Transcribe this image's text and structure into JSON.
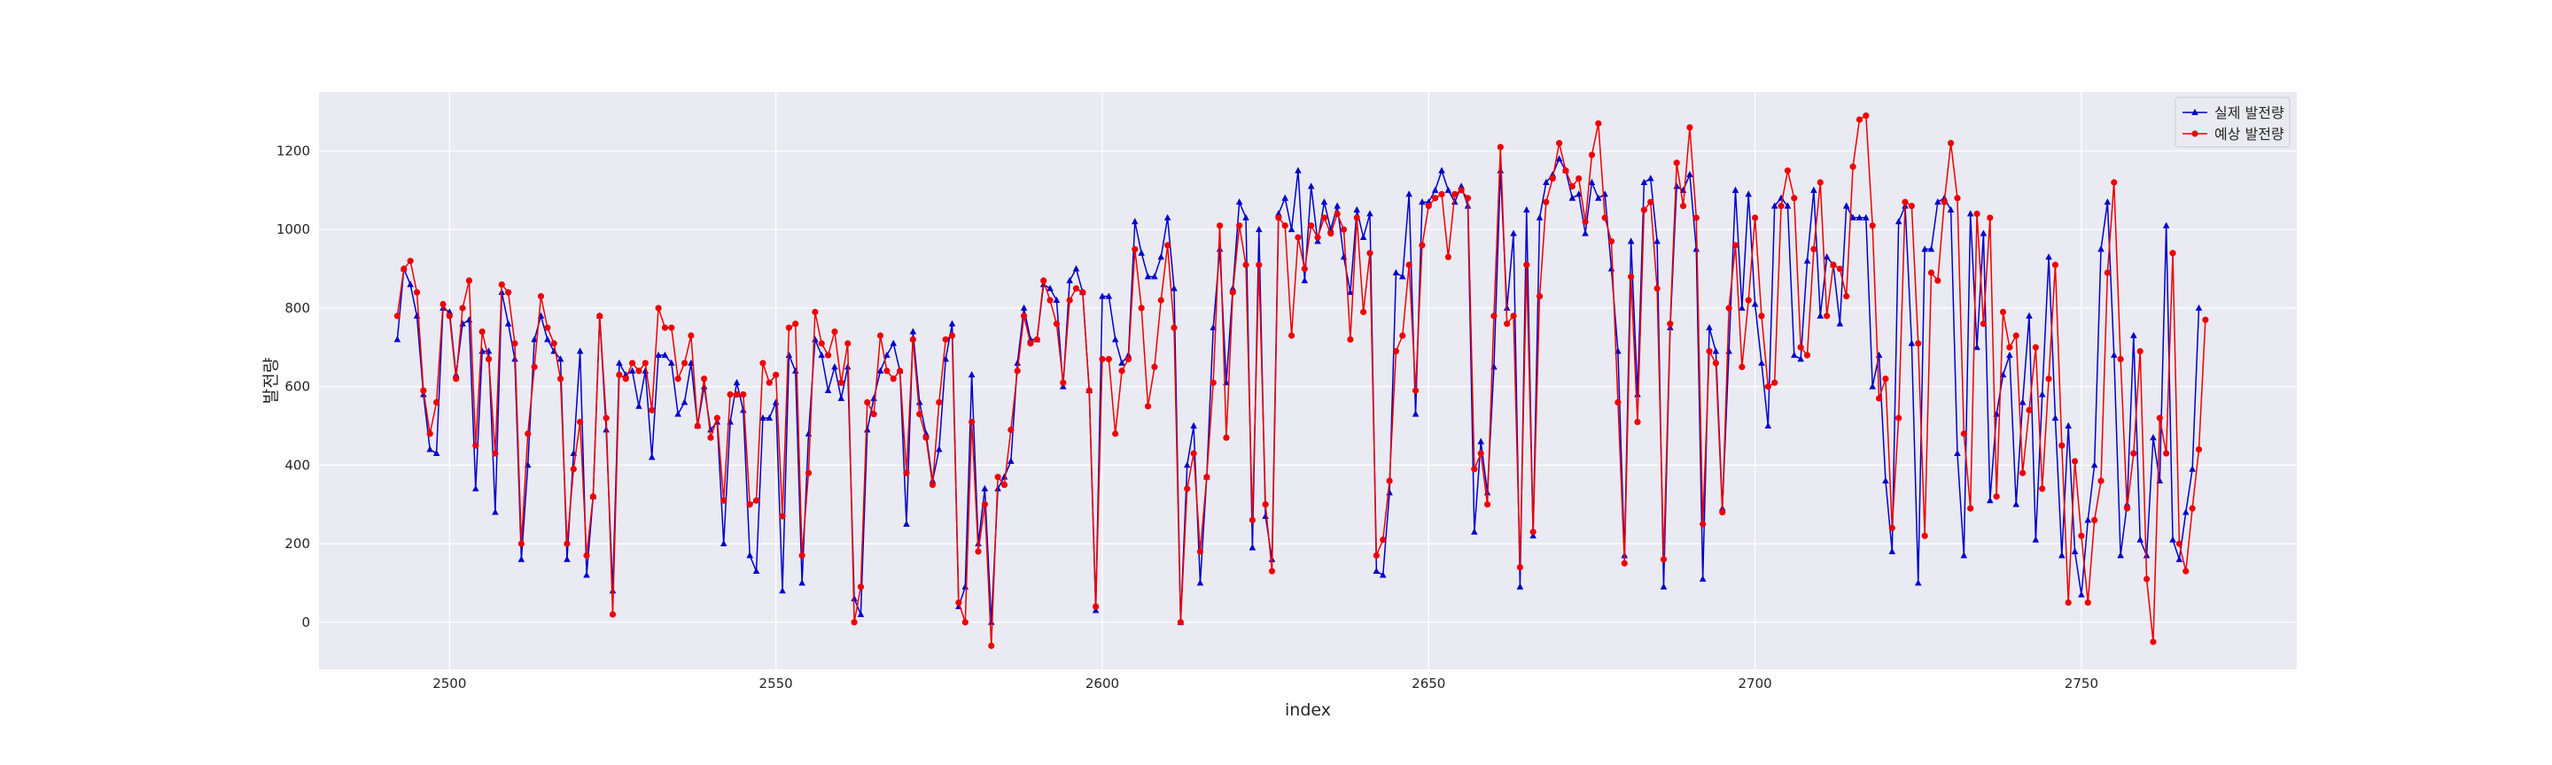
{
  "chart_data": {
    "type": "line",
    "xlabel": "index",
    "ylabel": "발전량",
    "xlim": [
      2480,
      2783
    ],
    "ylim": [
      -120,
      1350
    ],
    "xticks": [
      2500,
      2550,
      2600,
      2650,
      2700,
      2750
    ],
    "yticks": [
      0,
      200,
      400,
      600,
      800,
      1000,
      1200
    ],
    "grid": true,
    "legend_position": "top-right",
    "x_start": 2492,
    "series": [
      {
        "name": "실제 발전량",
        "color": "#0000cc",
        "marker": "triangle",
        "values": [
          720,
          900,
          860,
          780,
          580,
          440,
          430,
          800,
          790,
          630,
          760,
          770,
          340,
          690,
          690,
          280,
          840,
          760,
          670,
          160,
          400,
          720,
          780,
          720,
          690,
          670,
          160,
          430,
          690,
          120,
          320,
          780,
          490,
          80,
          660,
          630,
          640,
          550,
          640,
          420,
          680,
          680,
          660,
          530,
          560,
          660,
          500,
          600,
          490,
          510,
          200,
          510,
          610,
          540,
          170,
          130,
          520,
          520,
          560,
          80,
          680,
          640,
          100,
          480,
          720,
          680,
          590,
          650,
          570,
          650,
          60,
          20,
          490,
          570,
          640,
          680,
          710,
          640,
          250,
          740,
          560,
          480,
          360,
          440,
          670,
          760,
          40,
          90,
          630,
          200,
          340,
          0,
          340,
          370,
          410,
          660,
          800,
          720,
          720,
          860,
          850,
          820,
          600,
          870,
          900,
          840,
          590,
          30,
          830,
          830,
          720,
          660,
          680,
          1020,
          940,
          880,
          880,
          930,
          1030,
          850,
          0,
          400,
          500,
          100,
          370,
          750,
          950,
          610,
          850,
          1070,
          1030,
          190,
          1000,
          270,
          160,
          1040,
          1080,
          1000,
          1150,
          870,
          1110,
          970,
          1070,
          1000,
          1060,
          930,
          840,
          1050,
          980,
          1040,
          130,
          120,
          330,
          890,
          880,
          1090,
          530,
          1070,
          1070,
          1100,
          1150,
          1100,
          1070,
          1110,
          1060,
          230,
          460,
          330,
          650,
          1150,
          800,
          990,
          90,
          1050,
          220,
          1030,
          1120,
          1140,
          1180,
          1150,
          1080,
          1090,
          990,
          1120,
          1080,
          1090,
          900,
          690,
          170,
          970,
          580,
          1120,
          1130,
          970,
          90,
          750,
          1110,
          1100,
          1140,
          950,
          110,
          750,
          690,
          290,
          690,
          1100,
          800,
          1090,
          810,
          660,
          500,
          1060,
          1080,
          1060,
          680,
          670,
          920,
          1100,
          780,
          930,
          910,
          760,
          1060,
          1030,
          1030,
          1030,
          600,
          680,
          360,
          180,
          1020,
          1060,
          710,
          100,
          950,
          950,
          1070,
          1080,
          1050,
          430,
          170,
          1040,
          700,
          990,
          310,
          530,
          630,
          680,
          300,
          560,
          780,
          210,
          580,
          930,
          520,
          170,
          500,
          180,
          70,
          260,
          400,
          950,
          1070,
          680,
          170,
          300,
          730,
          210,
          170,
          470,
          360,
          1010,
          210,
          160,
          280,
          390,
          800
        ]
      },
      {
        "name": "예상 발전량",
        "color": "#ee0000",
        "marker": "circle",
        "values": [
          780,
          900,
          920,
          840,
          590,
          480,
          560,
          810,
          780,
          620,
          800,
          870,
          450,
          740,
          670,
          430,
          860,
          840,
          710,
          200,
          480,
          650,
          830,
          750,
          710,
          620,
          200,
          390,
          510,
          170,
          320,
          780,
          520,
          20,
          630,
          620,
          660,
          640,
          660,
          540,
          800,
          750,
          750,
          620,
          660,
          730,
          500,
          620,
          470,
          520,
          310,
          580,
          580,
          580,
          300,
          310,
          660,
          610,
          630,
          270,
          750,
          760,
          170,
          380,
          790,
          710,
          680,
          740,
          610,
          710,
          0,
          90,
          560,
          530,
          730,
          640,
          620,
          640,
          380,
          720,
          530,
          470,
          350,
          560,
          720,
          730,
          50,
          0,
          510,
          180,
          300,
          -60,
          370,
          350,
          490,
          640,
          780,
          710,
          720,
          870,
          820,
          760,
          610,
          820,
          850,
          840,
          590,
          40,
          670,
          670,
          480,
          640,
          670,
          950,
          800,
          550,
          650,
          820,
          960,
          750,
          0,
          340,
          430,
          180,
          370,
          610,
          1010,
          470,
          840,
          1010,
          910,
          260,
          910,
          300,
          130,
          1030,
          1010,
          730,
          980,
          900,
          1010,
          980,
          1030,
          990,
          1040,
          1000,
          720,
          1030,
          790,
          940,
          170,
          210,
          360,
          690,
          730,
          910,
          590,
          960,
          1060,
          1080,
          1090,
          930,
          1090,
          1100,
          1080,
          390,
          430,
          300,
          780,
          1210,
          760,
          780,
          140,
          910,
          230,
          830,
          1070,
          1130,
          1220,
          1150,
          1110,
          1130,
          1020,
          1190,
          1270,
          1030,
          970,
          560,
          150,
          880,
          510,
          1050,
          1070,
          850,
          160,
          760,
          1170,
          1060,
          1260,
          1030,
          250,
          690,
          660,
          280,
          800,
          960,
          650,
          820,
          1030,
          780,
          600,
          610,
          1060,
          1150,
          1080,
          700,
          680,
          950,
          1120,
          780,
          910,
          900,
          830,
          1160,
          1280,
          1290,
          1010,
          570,
          620,
          240,
          520,
          1070,
          1060,
          710,
          220,
          890,
          870,
          1070,
          1220,
          1080,
          480,
          290,
          1040,
          760,
          1030,
          320,
          790,
          700,
          730,
          380,
          540,
          700,
          340,
          620,
          910,
          450,
          50,
          410,
          220,
          50,
          260,
          360,
          890,
          1120,
          670,
          290,
          430,
          690,
          110,
          -50,
          520,
          430,
          940,
          200,
          130,
          290,
          440,
          770
        ]
      }
    ]
  }
}
